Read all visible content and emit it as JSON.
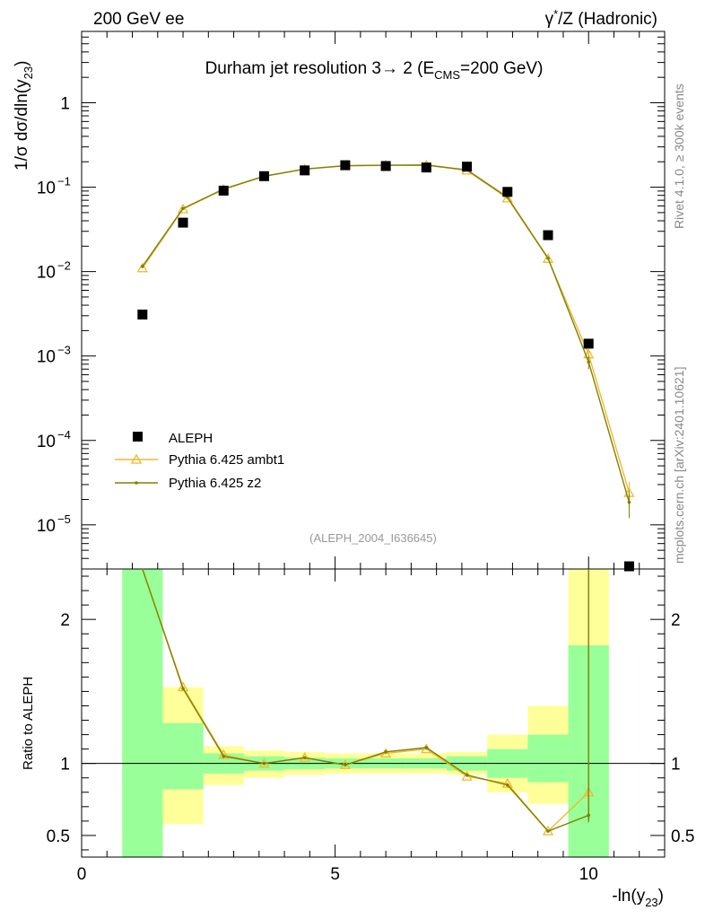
{
  "header": {
    "left": "200 GeV ee",
    "right_main": "γ",
    "right_sup": "*",
    "right_rest": "/Z (Hadronic)"
  },
  "side_labels": {
    "rivet": "Rivet 4.1.0, ≥ 300k events",
    "mcplots": "mcplots.cern.ch [arXiv:2401.10621]"
  },
  "chart_data": {
    "type": "line",
    "title_main": "Durham jet resolution 3→  2 (E",
    "title_sub": "CMS",
    "title_rest": "=200 GeV)",
    "analysis_id": "(ALEPH_2004_I636645)",
    "ylabel_main": "1/σ  dσ/dln(y",
    "ylabel_sub": "23",
    "ylabel_close": ")",
    "xlabel_main": "-ln(y",
    "xlabel_sub": "23",
    "xlabel_close": ")",
    "ratio_ylabel": "Ratio to ALEPH",
    "xlim": [
      0,
      11.5
    ],
    "ylim_log": [
      3e-06,
      7
    ],
    "ratio_ylim": [
      0.35,
      2.35
    ],
    "x_ticks": [
      {
        "v": 0,
        "label": "0"
      },
      {
        "v": 5,
        "label": "5"
      },
      {
        "v": 10,
        "label": "10"
      }
    ],
    "y_ticks": [
      {
        "exp": 0,
        "label": "1",
        "sup": ""
      },
      {
        "exp": -1,
        "label": "10",
        "sup": "−1"
      },
      {
        "exp": -2,
        "label": "10",
        "sup": "−2"
      },
      {
        "exp": -3,
        "label": "10",
        "sup": "−3"
      },
      {
        "exp": -4,
        "label": "10",
        "sup": "−4"
      },
      {
        "exp": -5,
        "label": "10",
        "sup": "−5"
      }
    ],
    "ratio_ticks": [
      {
        "v": 0.5,
        "label": "0.5"
      },
      {
        "v": 1,
        "label": "1"
      },
      {
        "v": 2,
        "label": "2"
      }
    ],
    "bins": [
      0.8,
      1.6,
      2.4,
      3.2,
      4.0,
      4.8,
      5.6,
      6.4,
      7.2,
      8.0,
      8.8,
      9.6,
      10.4,
      11.2
    ],
    "series": [
      {
        "name": "ALEPH",
        "color": "#000000",
        "x": [
          1.2,
          2.0,
          2.8,
          3.6,
          4.4,
          5.2,
          6.0,
          6.8,
          7.6,
          8.4,
          9.2,
          10.0,
          10.8
        ],
        "values": [
          0.0031,
          0.038,
          0.091,
          0.135,
          0.158,
          0.182,
          0.178,
          0.171,
          0.175,
          0.088,
          0.027,
          0.0014,
          2.6e-06
        ]
      },
      {
        "name": "Pythia 6.425 ambt1",
        "color": "#f0b830",
        "x": [
          1.2,
          2.0,
          2.8,
          3.6,
          4.4,
          5.2,
          6.0,
          6.8,
          7.6,
          8.4,
          9.2,
          10.0,
          10.8
        ],
        "values": [
          0.011,
          0.055,
          0.094,
          0.134,
          0.163,
          0.179,
          0.181,
          0.182,
          0.158,
          0.074,
          0.0142,
          0.00105,
          2.4e-05
        ],
        "errors": [
          0,
          0,
          0,
          0,
          0,
          0,
          0,
          0,
          0,
          0,
          0,
          0.00012,
          8.5e-06
        ]
      },
      {
        "name": "Pythia 6.425 z2",
        "color": "#808000",
        "x": [
          1.2,
          2.0,
          2.8,
          3.6,
          4.4,
          5.2,
          6.0,
          6.8,
          7.6,
          8.4,
          9.2,
          10.0,
          10.8
        ],
        "values": [
          0.0115,
          0.056,
          0.095,
          0.135,
          0.164,
          0.18,
          0.182,
          0.183,
          0.16,
          0.076,
          0.0144,
          0.00085,
          1.85e-05
        ],
        "errors": [
          0,
          0,
          0,
          0,
          0,
          0,
          0,
          0,
          0,
          0,
          0,
          0.00015,
          6.5e-06
        ]
      }
    ],
    "ratio": {
      "ambt1": [
        3.6,
        1.53,
        1.06,
        1.0,
        1.04,
        0.99,
        1.07,
        1.1,
        0.91,
        0.86,
        0.53,
        0.8,
        null
      ],
      "ambt1_err": [
        0,
        0,
        0,
        0,
        0,
        0,
        0,
        0,
        0,
        0,
        0,
        0.05,
        0
      ],
      "z2": [
        3.7,
        1.52,
        1.05,
        1.0,
        1.04,
        0.99,
        1.08,
        1.11,
        0.92,
        0.85,
        0.53,
        0.64,
        null
      ],
      "z2_err": [
        0,
        0,
        0,
        0,
        0,
        0,
        0,
        0,
        0,
        0,
        0,
        0.05,
        0
      ],
      "vertical_line_x": 10.0,
      "yellow_band": [
        [
          0.5,
          3.0
        ],
        [
          0.58,
          1.53
        ],
        [
          0.85,
          1.12
        ],
        [
          0.9,
          1.09
        ],
        [
          0.92,
          1.08
        ],
        [
          0.93,
          1.07
        ],
        [
          0.93,
          1.07
        ],
        [
          0.93,
          1.07
        ],
        [
          0.92,
          1.08
        ],
        [
          0.8,
          1.2
        ],
        [
          0.72,
          1.4
        ],
        [
          0.4,
          3.0
        ],
        [
          0,
          0
        ]
      ],
      "green_band": [
        [
          0.3,
          3.0
        ],
        [
          0.82,
          1.28
        ],
        [
          0.93,
          1.07
        ],
        [
          0.95,
          1.05
        ],
        [
          0.96,
          1.04
        ],
        [
          0.965,
          1.035
        ],
        [
          0.965,
          1.035
        ],
        [
          0.965,
          1.035
        ],
        [
          0.95,
          1.05
        ],
        [
          0.9,
          1.1
        ],
        [
          0.87,
          1.2
        ],
        [
          0.3,
          1.82
        ],
        [
          0,
          0
        ]
      ]
    }
  }
}
